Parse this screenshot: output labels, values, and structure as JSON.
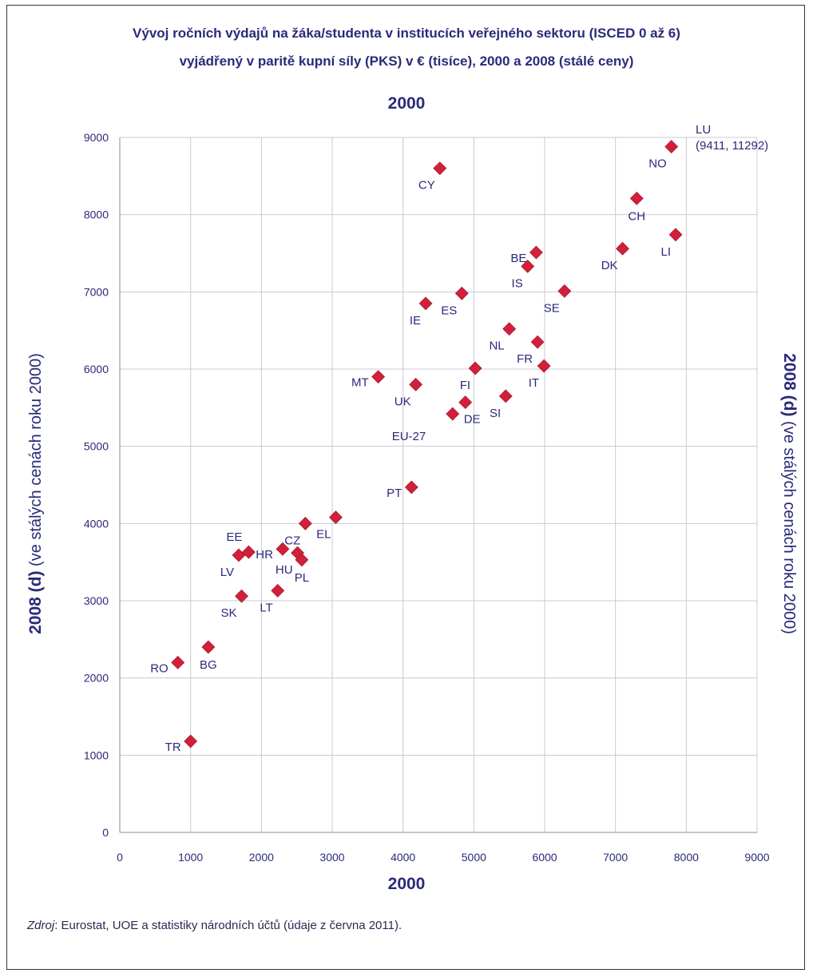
{
  "header": {
    "title_line1": "Vývoj ročních výdajů na žáka/studenta v institucích veřejného sektoru (ISCED 0 až 6)",
    "title_line2": "vyjádřený v paritě kupní síly (PKS) v € (tisíce), 2000 a 2008 (stálé ceny)"
  },
  "source": {
    "prefix": "Zdroj",
    "text": ": Eurostat, UOE a statistiky národních účtů (údaje z června 2011)."
  },
  "chart_data": {
    "type": "scatter",
    "top_label": "2000",
    "xlabel": "2000",
    "ylabel_bold": "2008 (d)",
    "ylabel_rest": " (ve stálých cenách roku 2000)",
    "xlim": [
      0,
      9000
    ],
    "ylim": [
      0,
      9000
    ],
    "xticks": [
      0,
      1000,
      2000,
      3000,
      4000,
      5000,
      6000,
      7000,
      8000,
      9000
    ],
    "yticks": [
      0,
      1000,
      2000,
      3000,
      4000,
      5000,
      6000,
      7000,
      8000,
      9000
    ],
    "grid": true,
    "marker_color": "#d0203a",
    "outlier_note": {
      "label": "LU",
      "detail": "(9411, 11292)"
    },
    "points": [
      {
        "label": "TR",
        "x": 1000,
        "y": 1180,
        "pos": "left"
      },
      {
        "label": "RO",
        "x": 820,
        "y": 2200,
        "pos": "left"
      },
      {
        "label": "BG",
        "x": 1250,
        "y": 2400,
        "pos": "below"
      },
      {
        "label": "SK",
        "x": 1720,
        "y": 3060,
        "pos": "belowleft"
      },
      {
        "label": "LT",
        "x": 2230,
        "y": 3130,
        "pos": "belowleft"
      },
      {
        "label": "LV",
        "x": 1680,
        "y": 3590,
        "pos": "belowleft"
      },
      {
        "label": "EE",
        "x": 1820,
        "y": 3630,
        "pos": "aboveleft"
      },
      {
        "label": "HR",
        "x": 2300,
        "y": 3670,
        "pos": "left"
      },
      {
        "label": "CZ",
        "x": 2620,
        "y": 4000,
        "pos": "belowleft"
      },
      {
        "label": "HU",
        "x": 2510,
        "y": 3620,
        "pos": "belowleft"
      },
      {
        "label": "PL",
        "x": 2570,
        "y": 3530,
        "pos": "below"
      },
      {
        "label": "EL",
        "x": 3050,
        "y": 4080,
        "pos": "belowleft"
      },
      {
        "label": "PT",
        "x": 4120,
        "y": 4470,
        "pos": "left"
      },
      {
        "label": "MT",
        "x": 3650,
        "y": 5900,
        "pos": "left"
      },
      {
        "label": "UK",
        "x": 4180,
        "y": 5800,
        "pos": "belowleft"
      },
      {
        "label": "EU-27",
        "x": 4700,
        "y": 5420,
        "pos": "eu"
      },
      {
        "label": "DE",
        "x": 4880,
        "y": 5570,
        "pos": "belowright"
      },
      {
        "label": "FI",
        "x": 5020,
        "y": 6010,
        "pos": "belowleft"
      },
      {
        "label": "SI",
        "x": 5450,
        "y": 5650,
        "pos": "belowleft"
      },
      {
        "label": "IE",
        "x": 4320,
        "y": 6850,
        "pos": "belowleft"
      },
      {
        "label": "ES",
        "x": 4830,
        "y": 6980,
        "pos": "belowleft"
      },
      {
        "label": "CY",
        "x": 4520,
        "y": 8600,
        "pos": "belowleft"
      },
      {
        "label": "NL",
        "x": 5500,
        "y": 6520,
        "pos": "belowleft"
      },
      {
        "label": "FR",
        "x": 5900,
        "y": 6350,
        "pos": "belowleft"
      },
      {
        "label": "IT",
        "x": 5990,
        "y": 6040,
        "pos": "belowleft"
      },
      {
        "label": "IS",
        "x": 5760,
        "y": 7330,
        "pos": "belowleft"
      },
      {
        "label": "BE",
        "x": 5880,
        "y": 7510,
        "pos": "left"
      },
      {
        "label": "SE",
        "x": 6280,
        "y": 7010,
        "pos": "belowleft"
      },
      {
        "label": "DK",
        "x": 7100,
        "y": 7560,
        "pos": "belowleft"
      },
      {
        "label": "CH",
        "x": 7300,
        "y": 8210,
        "pos": "below"
      },
      {
        "label": "LI",
        "x": 7850,
        "y": 7740,
        "pos": "belowleft"
      },
      {
        "label": "NO",
        "x": 7790,
        "y": 8880,
        "pos": "belowleft"
      }
    ]
  }
}
